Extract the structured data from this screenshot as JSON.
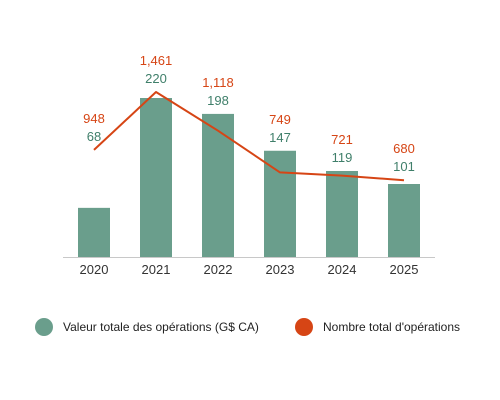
{
  "chart_data": {
    "type": "bar",
    "categories": [
      "2020",
      "2021",
      "2022",
      "2023",
      "2024",
      "2025"
    ],
    "series": [
      {
        "name": "Valeur totale des opérations (G$ CA)",
        "type": "bar",
        "axis": "left",
        "values": [
          68,
          220,
          198,
          147,
          119,
          101
        ],
        "labels": [
          "68",
          "220",
          "198",
          "147",
          "119",
          "101"
        ],
        "color": "#6a9e8c"
      },
      {
        "name": "Nombre total d'opérations",
        "type": "line",
        "axis": "right",
        "values": [
          948,
          1461,
          1118,
          749,
          721,
          680
        ],
        "labels": [
          "948",
          "1,461",
          "1,118",
          "749",
          "721",
          "680"
        ],
        "color": "#d64515"
      }
    ],
    "ylim_left": [
      0,
      236
    ],
    "ylim_right": [
      0,
      1550
    ],
    "axis_color": "#c8c8c8",
    "bar_label_color": "#3f7f6a",
    "line_label_color": "#d64515",
    "grid": false,
    "legend": "bottom"
  }
}
